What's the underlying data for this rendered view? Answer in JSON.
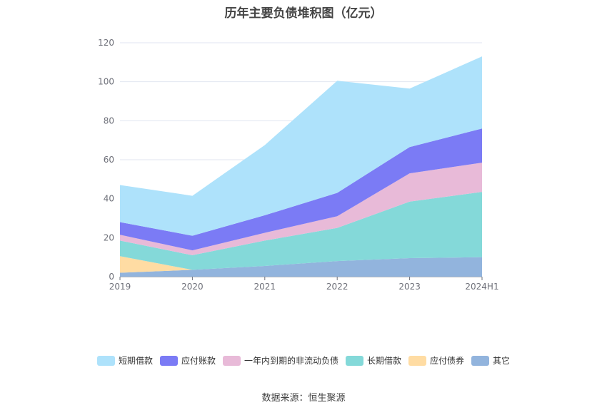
{
  "chart_data": {
    "type": "area",
    "stacked": true,
    "title": "历年主要负债堆积图（亿元）",
    "categories": [
      "2019",
      "2020",
      "2021",
      "2022",
      "2023",
      "2024H1"
    ],
    "ylim": [
      0,
      120
    ],
    "yticks": [
      0,
      20,
      40,
      60,
      80,
      100,
      120
    ],
    "grid": true,
    "legend_position": "bottom",
    "series": [
      {
        "name": "其它",
        "color": "#92b4dd",
        "values": [
          2,
          3.5,
          5.5,
          8,
          9.5,
          10
        ]
      },
      {
        "name": "应付债券",
        "color": "#ffdca3",
        "values": [
          8.5,
          0,
          0,
          0,
          0,
          0
        ]
      },
      {
        "name": "长期借款",
        "color": "#84d9d9",
        "values": [
          8,
          7.5,
          13,
          17,
          29,
          33.5
        ]
      },
      {
        "name": "一年内到期的非流动负债",
        "color": "#e8bad8",
        "values": [
          3,
          2.5,
          4,
          6,
          14.5,
          15
        ]
      },
      {
        "name": "应付账款",
        "color": "#7b7bf5",
        "values": [
          6.5,
          7.5,
          9,
          12,
          13.5,
          17.5
        ]
      },
      {
        "name": "短期借款",
        "color": "#aee2fb",
        "values": [
          19,
          20.5,
          36,
          57.5,
          30,
          37
        ]
      }
    ]
  },
  "legend_order": [
    5,
    4,
    3,
    2,
    1,
    0
  ],
  "source": "数据来源：恒生聚源"
}
